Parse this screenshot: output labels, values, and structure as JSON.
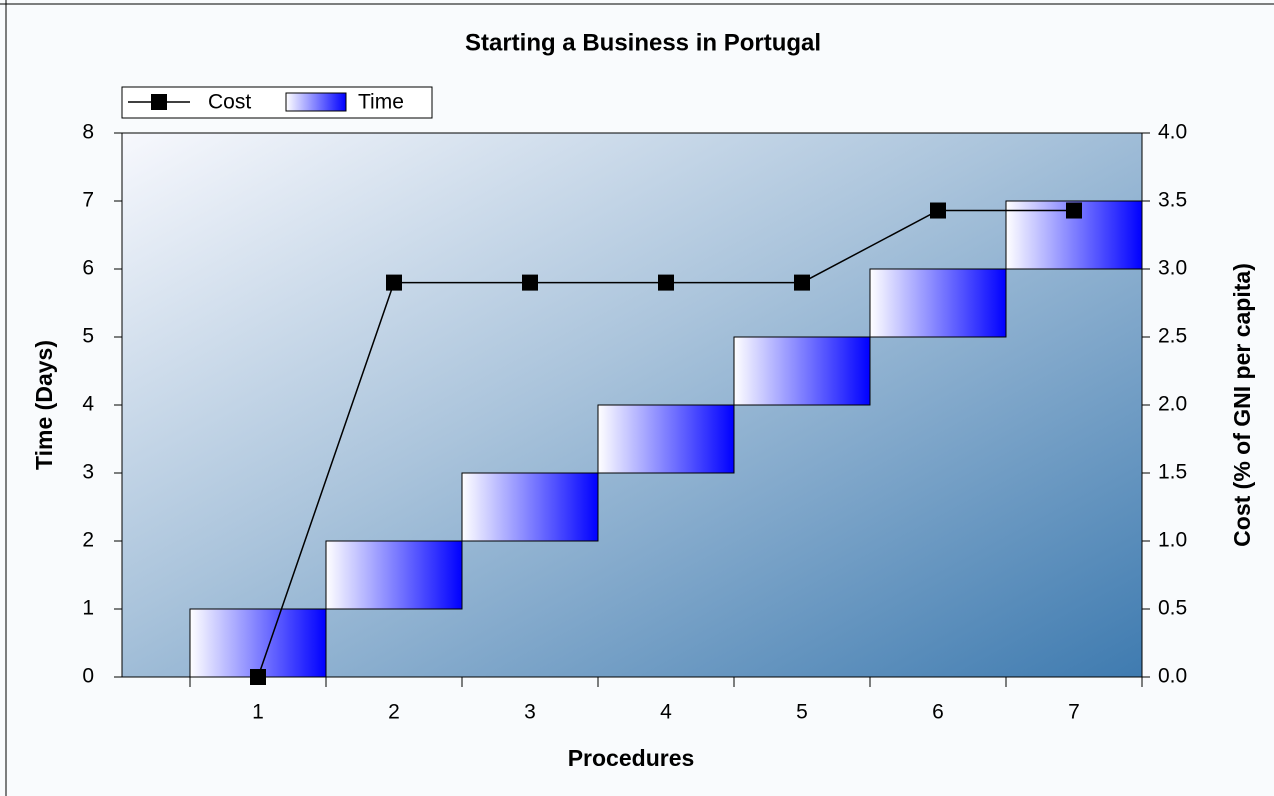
{
  "chart_data": {
    "type": "floating-bar-line",
    "title": "Starting a Business in Portugal",
    "x_label": "Procedures",
    "y_label": "Time (Days)",
    "y2_label": "Cost (% of GNI per capita)",
    "x": [
      1,
      2,
      3,
      4,
      5,
      6,
      7
    ],
    "xlim": [
      0,
      7.5
    ],
    "xticks": [
      1,
      2,
      3,
      4,
      5,
      6,
      7
    ],
    "ylim": [
      0,
      8
    ],
    "yticks": [
      0,
      1,
      2,
      3,
      4,
      5,
      6,
      7,
      8
    ],
    "y2lim": [
      0,
      4
    ],
    "y2ticks": [
      {
        "value": 0,
        "label": "0.0"
      },
      0.5,
      {
        "value": 1,
        "label": "1.0"
      },
      1.5,
      {
        "value": 2,
        "label": "2.0"
      },
      2.5,
      {
        "value": 3,
        "label": "3.0"
      },
      3.5,
      {
        "value": 4,
        "label": "4.0"
      }
    ],
    "legend": "top-left",
    "series": [
      {
        "name": "Cost",
        "type": "line",
        "axis": "y2",
        "color": "#000000",
        "values": [
          0,
          2.9,
          2.9,
          2.9,
          2.9,
          3.43,
          3.43
        ]
      },
      {
        "name": "Time",
        "type": "bar",
        "color": "#0000ff",
        "start": [
          0,
          1,
          2,
          3,
          4,
          5,
          6
        ],
        "end": [
          1,
          2,
          3,
          4,
          5,
          6,
          7
        ]
      }
    ]
  }
}
